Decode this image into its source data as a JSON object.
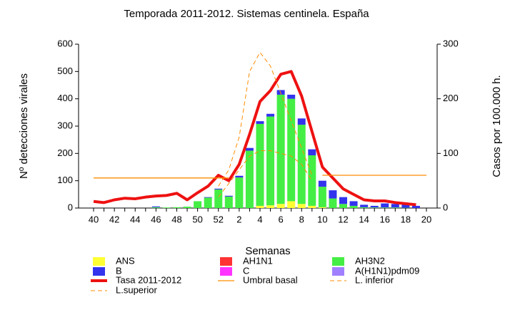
{
  "chart_data": {
    "type": "bar",
    "title": "Temporada 2011-2012. Sistemas centinela. España",
    "x_label": "Semanas",
    "y_label": "Nº detecciones virales",
    "y2_label": "Casos por 100.000 h.",
    "categories": [
      "40",
      null,
      "42",
      null,
      "44",
      null,
      "46",
      null,
      "48",
      null,
      "50",
      null,
      "52",
      null,
      "2",
      null,
      "4",
      null,
      "6",
      null,
      "8",
      null,
      "10",
      null,
      "12",
      null,
      "14",
      null,
      "16",
      null,
      "18",
      null,
      "20"
    ],
    "ylim": [
      0,
      600
    ],
    "yticks": [
      0,
      100,
      200,
      300,
      400,
      500,
      600
    ],
    "y2lim": [
      0,
      300
    ],
    "y2ticks": [
      0,
      100,
      200,
      300
    ],
    "series": [
      {
        "name": "ANS",
        "kind": "bar",
        "color": "#ffff33",
        "values": [
          0,
          0,
          0,
          0,
          0,
          0,
          0,
          0,
          0,
          0,
          0,
          0,
          0,
          0,
          0,
          0,
          8,
          10,
          15,
          25,
          15,
          8,
          3,
          0,
          0,
          0,
          0,
          0,
          0,
          0,
          0,
          0,
          0
        ]
      },
      {
        "name": "AH1N1",
        "kind": "bar",
        "color": "#ff3333",
        "values": [
          0,
          0,
          0,
          0,
          0,
          0,
          0,
          0,
          0,
          0,
          0,
          0,
          0,
          0,
          0,
          0,
          0,
          0,
          0,
          0,
          0,
          0,
          0,
          0,
          0,
          0,
          0,
          0,
          0,
          0,
          0,
          0,
          0
        ]
      },
      {
        "name": "AH3N2",
        "kind": "bar",
        "color": "#44ee44",
        "values": [
          0,
          0,
          0,
          0,
          0,
          0,
          3,
          2,
          3,
          5,
          25,
          38,
          68,
          42,
          112,
          210,
          300,
          325,
          400,
          375,
          290,
          185,
          75,
          35,
          15,
          8,
          3,
          2,
          2,
          2,
          1,
          0,
          0
        ]
      },
      {
        "name": "B",
        "kind": "bar",
        "color": "#3333ee",
        "values": [
          0,
          0,
          0,
          0,
          0,
          0,
          3,
          0,
          0,
          0,
          0,
          2,
          3,
          3,
          6,
          10,
          10,
          10,
          17,
          15,
          23,
          22,
          22,
          30,
          25,
          17,
          9,
          6,
          15,
          13,
          11,
          8,
          0
        ]
      },
      {
        "name": "C",
        "kind": "bar",
        "color": "#ff33ff",
        "values": [
          0,
          0,
          0,
          0,
          0,
          0,
          0,
          0,
          0,
          0,
          0,
          0,
          0,
          0,
          0,
          0,
          0,
          0,
          0,
          0,
          0,
          0,
          0,
          0,
          0,
          0,
          0,
          0,
          0,
          0,
          0,
          0,
          0
        ]
      },
      {
        "name": "A(H1N1)pdm09",
        "kind": "bar",
        "color": "#a080ff",
        "values": [
          0,
          0,
          0,
          0,
          0,
          0,
          0,
          0,
          0,
          0,
          0,
          0,
          0,
          0,
          0,
          0,
          0,
          0,
          0,
          0,
          0,
          0,
          0,
          0,
          0,
          0,
          0,
          0,
          0,
          0,
          0,
          0,
          0
        ]
      },
      {
        "name": "Tasa 2011-2012",
        "kind": "line",
        "axis": "y2",
        "color": "#ee1111",
        "line_width": 4,
        "values": [
          12,
          10,
          15,
          18,
          17,
          20,
          22,
          23,
          27,
          15,
          28,
          40,
          60,
          50,
          80,
          135,
          195,
          215,
          245,
          250,
          205,
          140,
          75,
          55,
          35,
          25,
          15,
          13,
          13,
          10,
          8,
          6,
          null
        ]
      },
      {
        "name": "Umbral basal",
        "kind": "line",
        "axis": "y2",
        "color": "#ff8c00",
        "line_width": 1.3,
        "values": [
          55,
          55,
          55,
          55,
          55,
          55,
          55,
          55,
          55,
          55,
          55,
          55,
          55,
          55,
          null,
          null,
          null,
          null,
          null,
          null,
          null,
          null,
          60,
          60,
          60,
          60,
          60,
          60,
          60,
          60,
          60,
          60,
          60
        ]
      },
      {
        "name": "L. inferior",
        "kind": "line",
        "axis": "y2",
        "color": "#ff8c00",
        "line_width": 1,
        "dash": true,
        "values": [
          null,
          null,
          null,
          null,
          null,
          null,
          null,
          null,
          null,
          null,
          null,
          null,
          20,
          45,
          70,
          95,
          105,
          105,
          100,
          95,
          80,
          50,
          null,
          null,
          null,
          null,
          null,
          null,
          null,
          null,
          null,
          null,
          null
        ]
      },
      {
        "name": "L.superior",
        "kind": "line",
        "axis": "y2",
        "color": "#ff8c00",
        "line_width": 1,
        "dash": true,
        "values": [
          null,
          null,
          null,
          null,
          null,
          null,
          null,
          null,
          null,
          null,
          null,
          null,
          40,
          70,
          130,
          250,
          285,
          260,
          210,
          160,
          110,
          60,
          null,
          null,
          null,
          null,
          null,
          null,
          null,
          null,
          null,
          null,
          null
        ]
      }
    ]
  }
}
